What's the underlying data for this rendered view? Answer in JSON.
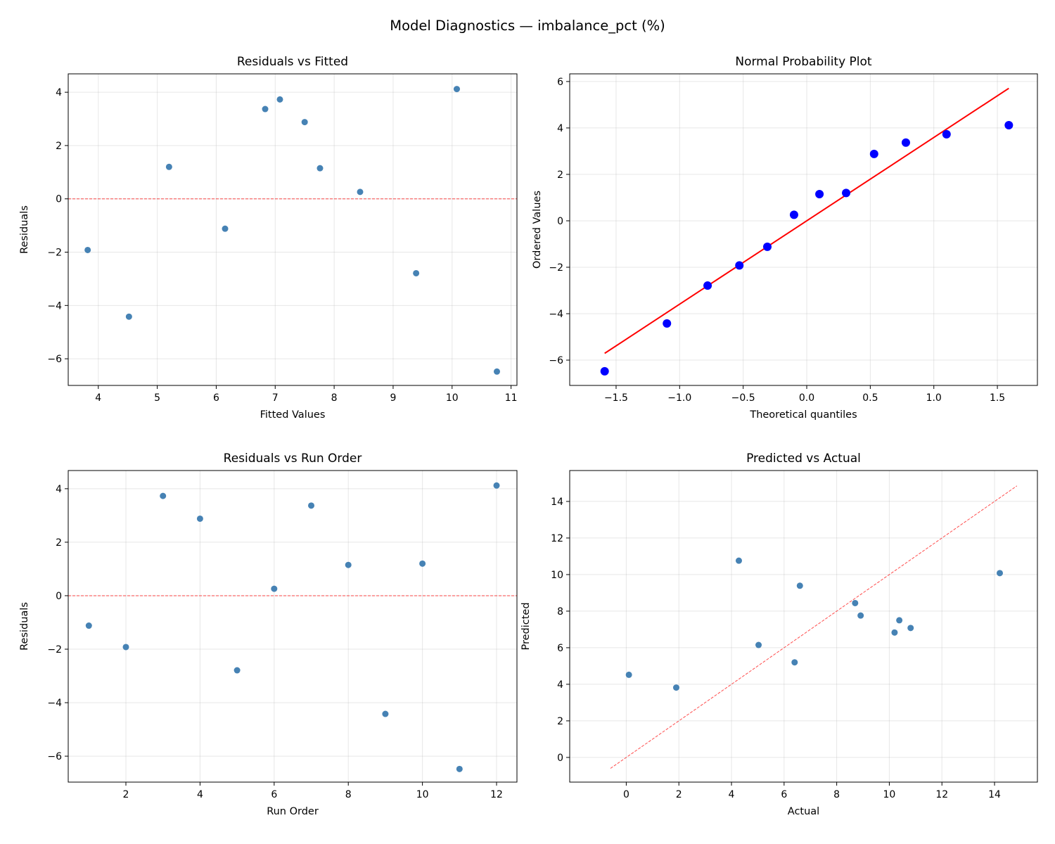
{
  "figure_title": "Model Diagnostics — imbalance_pct (%)",
  "chart_data": [
    {
      "type": "scatter",
      "title": "Residuals vs Fitted",
      "xlabel": "Fitted Values",
      "ylabel": "Residuals",
      "xlim": [
        3.49,
        11.1
      ],
      "ylim": [
        -7.0,
        4.69
      ],
      "xticks": [
        4,
        5,
        6,
        7,
        8,
        9,
        10,
        11
      ],
      "yticks": [
        -6,
        -4,
        -2,
        0,
        2,
        4
      ],
      "grid": true,
      "point_color": "#4682b4",
      "x": [
        3.82,
        4.52,
        5.2,
        6.15,
        6.83,
        7.08,
        7.5,
        7.76,
        8.44,
        9.39,
        10.08,
        10.76
      ],
      "y": [
        -1.92,
        -4.42,
        1.2,
        -1.12,
        3.37,
        3.73,
        2.88,
        1.15,
        0.26,
        -2.79,
        4.12,
        -6.48
      ],
      "reference_line": {
        "kind": "horizontal",
        "y": 0,
        "color": "#ff0000",
        "style": "dashed"
      }
    },
    {
      "type": "scatter",
      "title": "Normal Probability Plot",
      "xlabel": "Theoretical quantiles",
      "ylabel": "Ordered Values",
      "xlim": [
        -1.865,
        1.815
      ],
      "ylim": [
        -7.09,
        6.33
      ],
      "xticks": [
        -1.5,
        -1.0,
        -0.5,
        0.0,
        0.5,
        1.0,
        1.5
      ],
      "yticks": [
        -6,
        -4,
        -2,
        0,
        2,
        4,
        6
      ],
      "grid": true,
      "point_color": "#0000ff",
      "x": [
        -1.59,
        -1.1,
        -0.78,
        -0.53,
        -0.31,
        -0.1,
        0.1,
        0.31,
        0.53,
        0.78,
        1.1,
        1.59
      ],
      "y": [
        -6.48,
        -4.42,
        -2.79,
        -1.92,
        -1.12,
        0.26,
        1.15,
        1.2,
        2.88,
        3.37,
        3.73,
        4.12
      ],
      "reference_line": {
        "kind": "fit",
        "slope": 3.59,
        "intercept": 0.0,
        "x": [
          -1.59,
          1.59
        ],
        "color": "#ff0000",
        "style": "solid"
      }
    },
    {
      "type": "scatter",
      "title": "Residuals vs Run Order",
      "xlabel": "Run Order",
      "ylabel": "Residuals",
      "xlim": [
        0.444,
        12.55
      ],
      "ylim": [
        -6.97,
        4.68
      ],
      "xticks": [
        2,
        4,
        6,
        8,
        10,
        12
      ],
      "yticks": [
        -6,
        -4,
        -2,
        0,
        2,
        4
      ],
      "grid": true,
      "point_color": "#4682b4",
      "x": [
        1,
        2,
        3,
        4,
        5,
        6,
        7,
        8,
        9,
        10,
        11,
        12
      ],
      "y": [
        -1.12,
        -1.92,
        3.73,
        2.88,
        -2.79,
        0.26,
        3.37,
        1.15,
        -4.42,
        1.2,
        -6.48,
        4.12
      ],
      "reference_line": {
        "kind": "horizontal",
        "y": 0,
        "color": "#ff0000",
        "style": "dashed"
      }
    },
    {
      "type": "scatter",
      "title": "Predicted vs Actual",
      "xlabel": "Actual",
      "ylabel": "Predicted",
      "xlim": [
        -2.15,
        15.63
      ],
      "ylim": [
        -1.35,
        15.69
      ],
      "xticks": [
        0,
        2,
        4,
        6,
        8,
        10,
        12,
        14
      ],
      "yticks": [
        0,
        2,
        4,
        6,
        8,
        10,
        12,
        14
      ],
      "grid": true,
      "point_color": "#4682b4",
      "x": [
        5.03,
        1.9,
        10.81,
        10.38,
        6.6,
        8.7,
        10.2,
        8.91,
        0.1,
        6.4,
        4.28,
        14.2
      ],
      "y": [
        6.15,
        3.82,
        7.08,
        7.5,
        9.39,
        8.44,
        6.83,
        7.76,
        4.52,
        5.2,
        10.76,
        10.08
      ],
      "reference_line": {
        "kind": "identity",
        "x": [
          -0.6,
          14.85
        ],
        "color": "#ff0000",
        "style": "dashed"
      }
    }
  ]
}
